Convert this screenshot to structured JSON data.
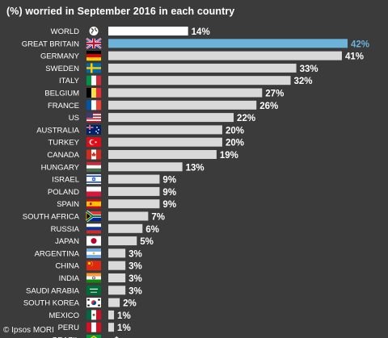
{
  "chart_data": {
    "type": "bar",
    "orientation": "horizontal",
    "title": "(%) worried in September 2016 in each country",
    "categories": [
      "WORLD",
      "GREAT BRITAIN",
      "GERMANY",
      "SWEDEN",
      "ITALY",
      "BELGIUM",
      "FRANCE",
      "US",
      "AUSTRALIA",
      "TURKEY",
      "CANADA",
      "HUNGARY",
      "ISRAEL",
      "POLAND",
      "SPAIN",
      "SOUTH AFRICA",
      "RUSSIA",
      "JAPAN",
      "ARGENTINA",
      "CHINA",
      "INDIA",
      "SAUDI ARABIA",
      "SOUTH KOREA",
      "MEXICO",
      "PERU",
      "BRAZIL"
    ],
    "values": [
      14,
      42,
      41,
      33,
      32,
      27,
      26,
      22,
      20,
      20,
      19,
      13,
      9,
      9,
      9,
      7,
      6,
      5,
      3,
      3,
      3,
      3,
      2,
      1,
      1,
      null
    ],
    "value_labels": [
      "14%",
      "42%",
      "41%",
      "33%",
      "32%",
      "27%",
      "26%",
      "22%",
      "20%",
      "20%",
      "19%",
      "13%",
      "9%",
      "9%",
      "9%",
      "7%",
      "6%",
      "5%",
      "3%",
      "3%",
      "3%",
      "3%",
      "2%",
      "1%",
      "1%",
      "*"
    ],
    "flags": [
      "globe",
      "gb",
      "de",
      "se",
      "it",
      "be",
      "fr",
      "us",
      "au",
      "tr",
      "ca",
      "hu",
      "il",
      "pl",
      "es",
      "za",
      "ru",
      "jp",
      "ar",
      "cn",
      "in",
      "sa",
      "kr",
      "mx",
      "pe",
      "br"
    ],
    "xlim": [
      0,
      42
    ],
    "grid": false,
    "legend": "none",
    "colors": {
      "background": "#3b3b3b",
      "bar": "#d9d9d9",
      "bar_world": "#ffffff",
      "bar_highlight": "#6bb3d9",
      "label_highlight": "#6bb3d9",
      "text": "#ffffff"
    }
  },
  "footer": {
    "credit": "© Ipsos MORI"
  }
}
